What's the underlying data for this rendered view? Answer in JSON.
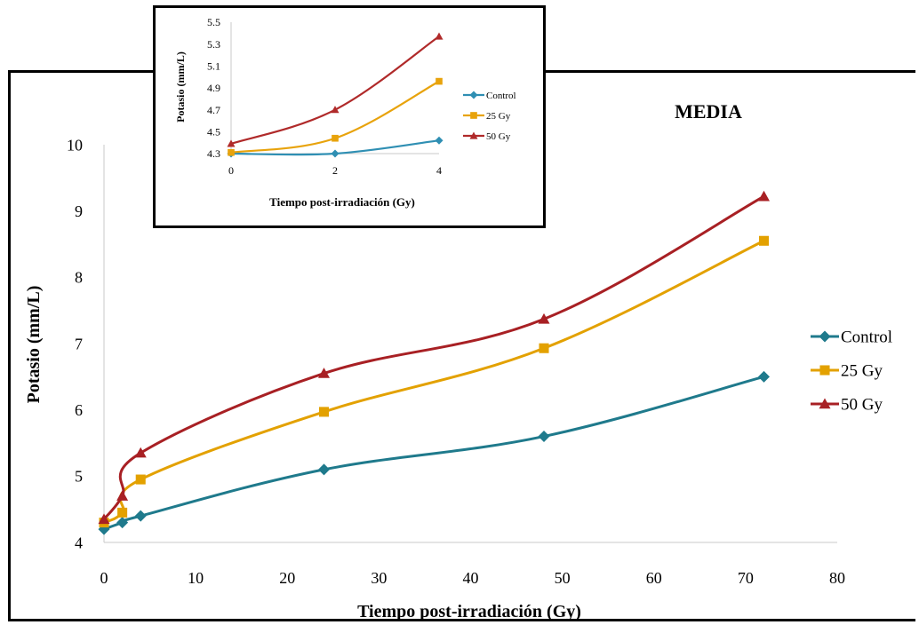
{
  "chart_data": [
    {
      "id": "main",
      "type": "line",
      "title": "MEDIA",
      "xlabel": "Tiempo post-irradiación (Gy)",
      "ylabel": "Potasio (mm/L)",
      "xlim": [
        0,
        80
      ],
      "ylim": [
        4,
        10
      ],
      "xticks": [
        "0",
        "10",
        "20",
        "30",
        "40",
        "50",
        "60",
        "70",
        "80"
      ],
      "yticks": [
        "4",
        "5",
        "6",
        "7",
        "8",
        "9",
        "10"
      ],
      "grid": false,
      "legend_position": "right",
      "x": [
        0,
        2,
        4,
        24,
        48,
        72
      ],
      "series": [
        {
          "name": "Control",
          "color": "#1f7a8c",
          "marker": "diamond",
          "values": [
            4.2,
            4.3,
            4.4,
            5.1,
            5.6,
            6.5
          ]
        },
        {
          "name": "25 Gy",
          "color": "#e3a100",
          "marker": "square",
          "values": [
            4.3,
            4.45,
            4.95,
            5.97,
            6.93,
            8.55
          ]
        },
        {
          "name": "50 Gy",
          "color": "#a82024",
          "marker": "triangle",
          "values": [
            4.35,
            4.7,
            5.35,
            6.55,
            7.37,
            9.22
          ]
        }
      ]
    },
    {
      "id": "inset",
      "type": "line",
      "title": "",
      "xlabel": "Tiempo post-irradiación (Gy)",
      "ylabel": "Potasio (mm/L)",
      "xlim": [
        0,
        4
      ],
      "ylim": [
        4.3,
        5.5
      ],
      "xticks": [
        "0",
        "2",
        "4"
      ],
      "yticks": [
        "4.3",
        "4.5",
        "4.7",
        "4.9",
        "5.1",
        "5.3",
        "5.5"
      ],
      "grid": false,
      "legend_position": "right",
      "x": [
        0,
        2,
        4
      ],
      "series": [
        {
          "name": "Control",
          "color": "#2f8fb3",
          "marker": "diamond",
          "values": [
            4.3,
            4.3,
            4.42
          ]
        },
        {
          "name": "25 Gy",
          "color": "#e8a30c",
          "marker": "square",
          "values": [
            4.31,
            4.44,
            4.96
          ]
        },
        {
          "name": "50 Gy",
          "color": "#b02a2a",
          "marker": "triangle",
          "values": [
            4.39,
            4.7,
            5.37
          ]
        }
      ]
    }
  ]
}
